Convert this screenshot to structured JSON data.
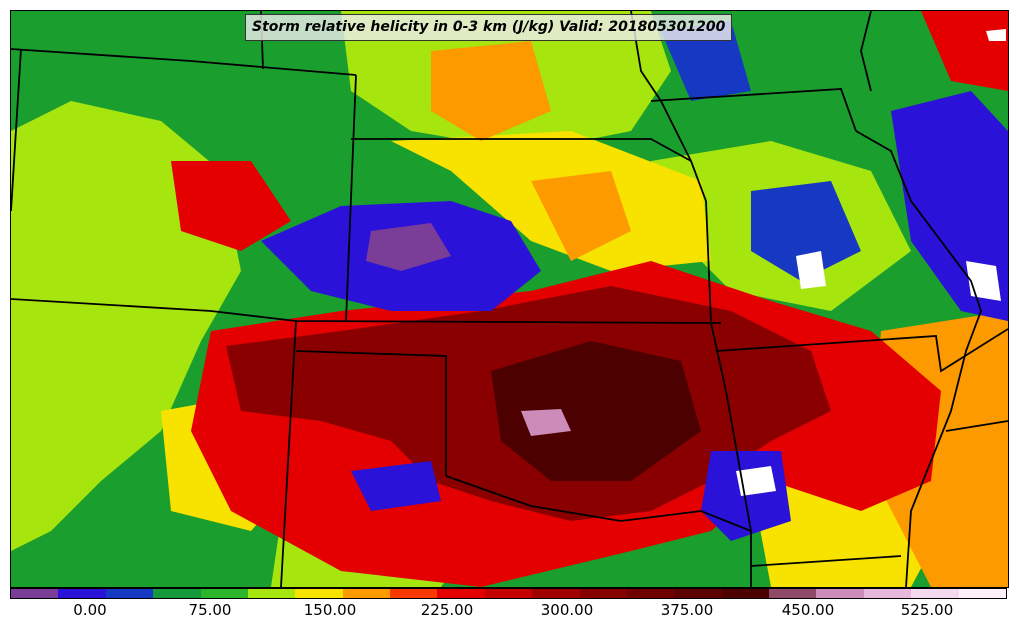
{
  "title": "Storm relative helicity in 0-3 km (J/kg) Valid: 201805301200",
  "colorbar": {
    "colors": [
      "#7a3d98",
      "#2a12d8",
      "#1638c2",
      "#149a3a",
      "#2ab52a",
      "#a6e60e",
      "#f7e200",
      "#fc9a00",
      "#f83a00",
      "#e40000",
      "#c40000",
      "#a00000",
      "#860000",
      "#700000",
      "#5e0000",
      "#4c0000",
      "#8e4a66",
      "#cc8cba",
      "#e6b8dc",
      "#f4d8ee",
      "#fff0fa"
    ],
    "ticks": [
      "0.00",
      "75.00",
      "150.00",
      "225.00",
      "300.00",
      "375.00",
      "450.00",
      "525.00"
    ]
  },
  "field_colors": {
    "background": "#1a9e2e",
    "very_low": "#7a3d98",
    "low": "#2a12d8",
    "mid_low": "#1638c2",
    "green": "#2ab52a",
    "yellow_green": "#a6e60e",
    "yellow": "#f7e200",
    "orange": "#fc9a00",
    "red": "#e40000",
    "dark_red": "#8a0000",
    "darkest": "#4c0000",
    "mauve": "#cc8cba",
    "white": "#ffffff"
  }
}
